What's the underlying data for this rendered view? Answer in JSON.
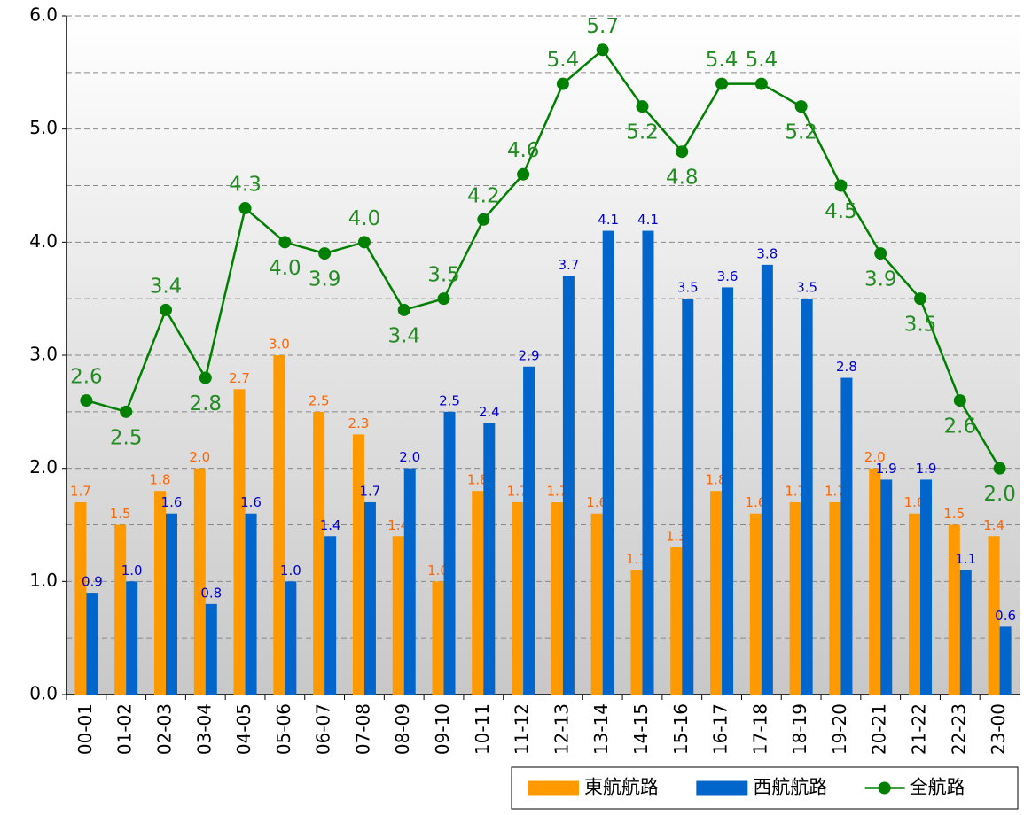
{
  "chart_data": {
    "type": "bar_line",
    "categories": [
      "00-01",
      "01-02",
      "02-03",
      "03-04",
      "04-05",
      "05-06",
      "06-07",
      "07-08",
      "08-09",
      "09-10",
      "10-11",
      "11-12",
      "12-13",
      "13-14",
      "14-15",
      "15-16",
      "16-17",
      "17-18",
      "18-19",
      "19-20",
      "20-21",
      "21-22",
      "22-23",
      "23-00"
    ],
    "series": [
      {
        "name": "東航航路",
        "type": "bar",
        "color": "#ff9900",
        "label_color": "#ff6600",
        "values": [
          1.7,
          1.5,
          1.8,
          2.0,
          2.7,
          3.0,
          2.5,
          2.3,
          1.4,
          1.0,
          1.8,
          1.7,
          1.7,
          1.6,
          1.1,
          1.3,
          1.8,
          1.6,
          1.7,
          1.7,
          2.0,
          1.6,
          1.5,
          1.4
        ],
        "value_labels": [
          "1.7",
          "1.5",
          "1.8",
          "2.0",
          "2.7",
          "3.0",
          "2.5",
          "2.3",
          "1.4",
          "1.0",
          "1.8",
          "1.7",
          "1.7",
          "1.6",
          "1.1",
          "1.3",
          "1.8",
          "1.6",
          "1.7",
          "1.7",
          "2.0",
          "1.6",
          "1.5",
          "1.4"
        ]
      },
      {
        "name": "西航航路",
        "type": "bar",
        "color": "#0066cc",
        "label_color": "#0000cc",
        "values": [
          0.9,
          1.0,
          1.6,
          0.8,
          1.6,
          1.0,
          1.4,
          1.7,
          2.0,
          2.5,
          2.4,
          2.9,
          3.7,
          4.1,
          4.1,
          3.5,
          3.6,
          3.8,
          3.5,
          2.8,
          1.9,
          1.9,
          1.1,
          0.6
        ],
        "value_labels": [
          "0.9",
          "1.0",
          "1.6",
          "0.8",
          "1.6",
          "1.0",
          "1.4",
          "1.7",
          "2.0",
          "2.5",
          "2.4",
          "2.9",
          "3.7",
          "4.1",
          "4.1",
          "3.5",
          "3.6",
          "3.8",
          "3.5",
          "2.8",
          "1.9",
          "1.9",
          "1.1",
          "0.6"
        ]
      },
      {
        "name": "全航路",
        "type": "line",
        "color": "#008000",
        "label_color": "#228b22",
        "values": [
          2.6,
          2.5,
          3.4,
          2.8,
          4.3,
          4.0,
          3.9,
          4.0,
          3.4,
          3.5,
          4.2,
          4.6,
          5.4,
          5.7,
          5.2,
          4.8,
          5.4,
          5.4,
          5.2,
          4.5,
          3.9,
          3.5,
          2.6,
          2.0
        ],
        "value_labels": [
          "2.6",
          "2.5",
          "3.4",
          "2.8",
          "4.3",
          "4.0",
          "3.9",
          "4.0",
          "3.4",
          "3.5",
          "4.2",
          "4.6",
          "5.4",
          "5.7",
          "5.2",
          "4.8",
          "5.4",
          "5.4",
          "5.2",
          "4.5",
          "3.9",
          "3.5",
          "2.6",
          "2.0"
        ]
      }
    ],
    "ylim": [
      0,
      6
    ],
    "yticks": [
      {
        "value": 0,
        "label": "0.0"
      },
      {
        "value": 1,
        "label": "1.0"
      },
      {
        "value": 2,
        "label": "2.0"
      },
      {
        "value": 3,
        "label": "3.0"
      },
      {
        "value": 4,
        "label": "4.0"
      },
      {
        "value": 5,
        "label": "5.0"
      },
      {
        "value": 6,
        "label": "6.0"
      }
    ],
    "minor_yticks": [
      0.5,
      1.5,
      2.5,
      3.5,
      4.5,
      5.5
    ],
    "grid": true,
    "legend": "bottom-right"
  }
}
